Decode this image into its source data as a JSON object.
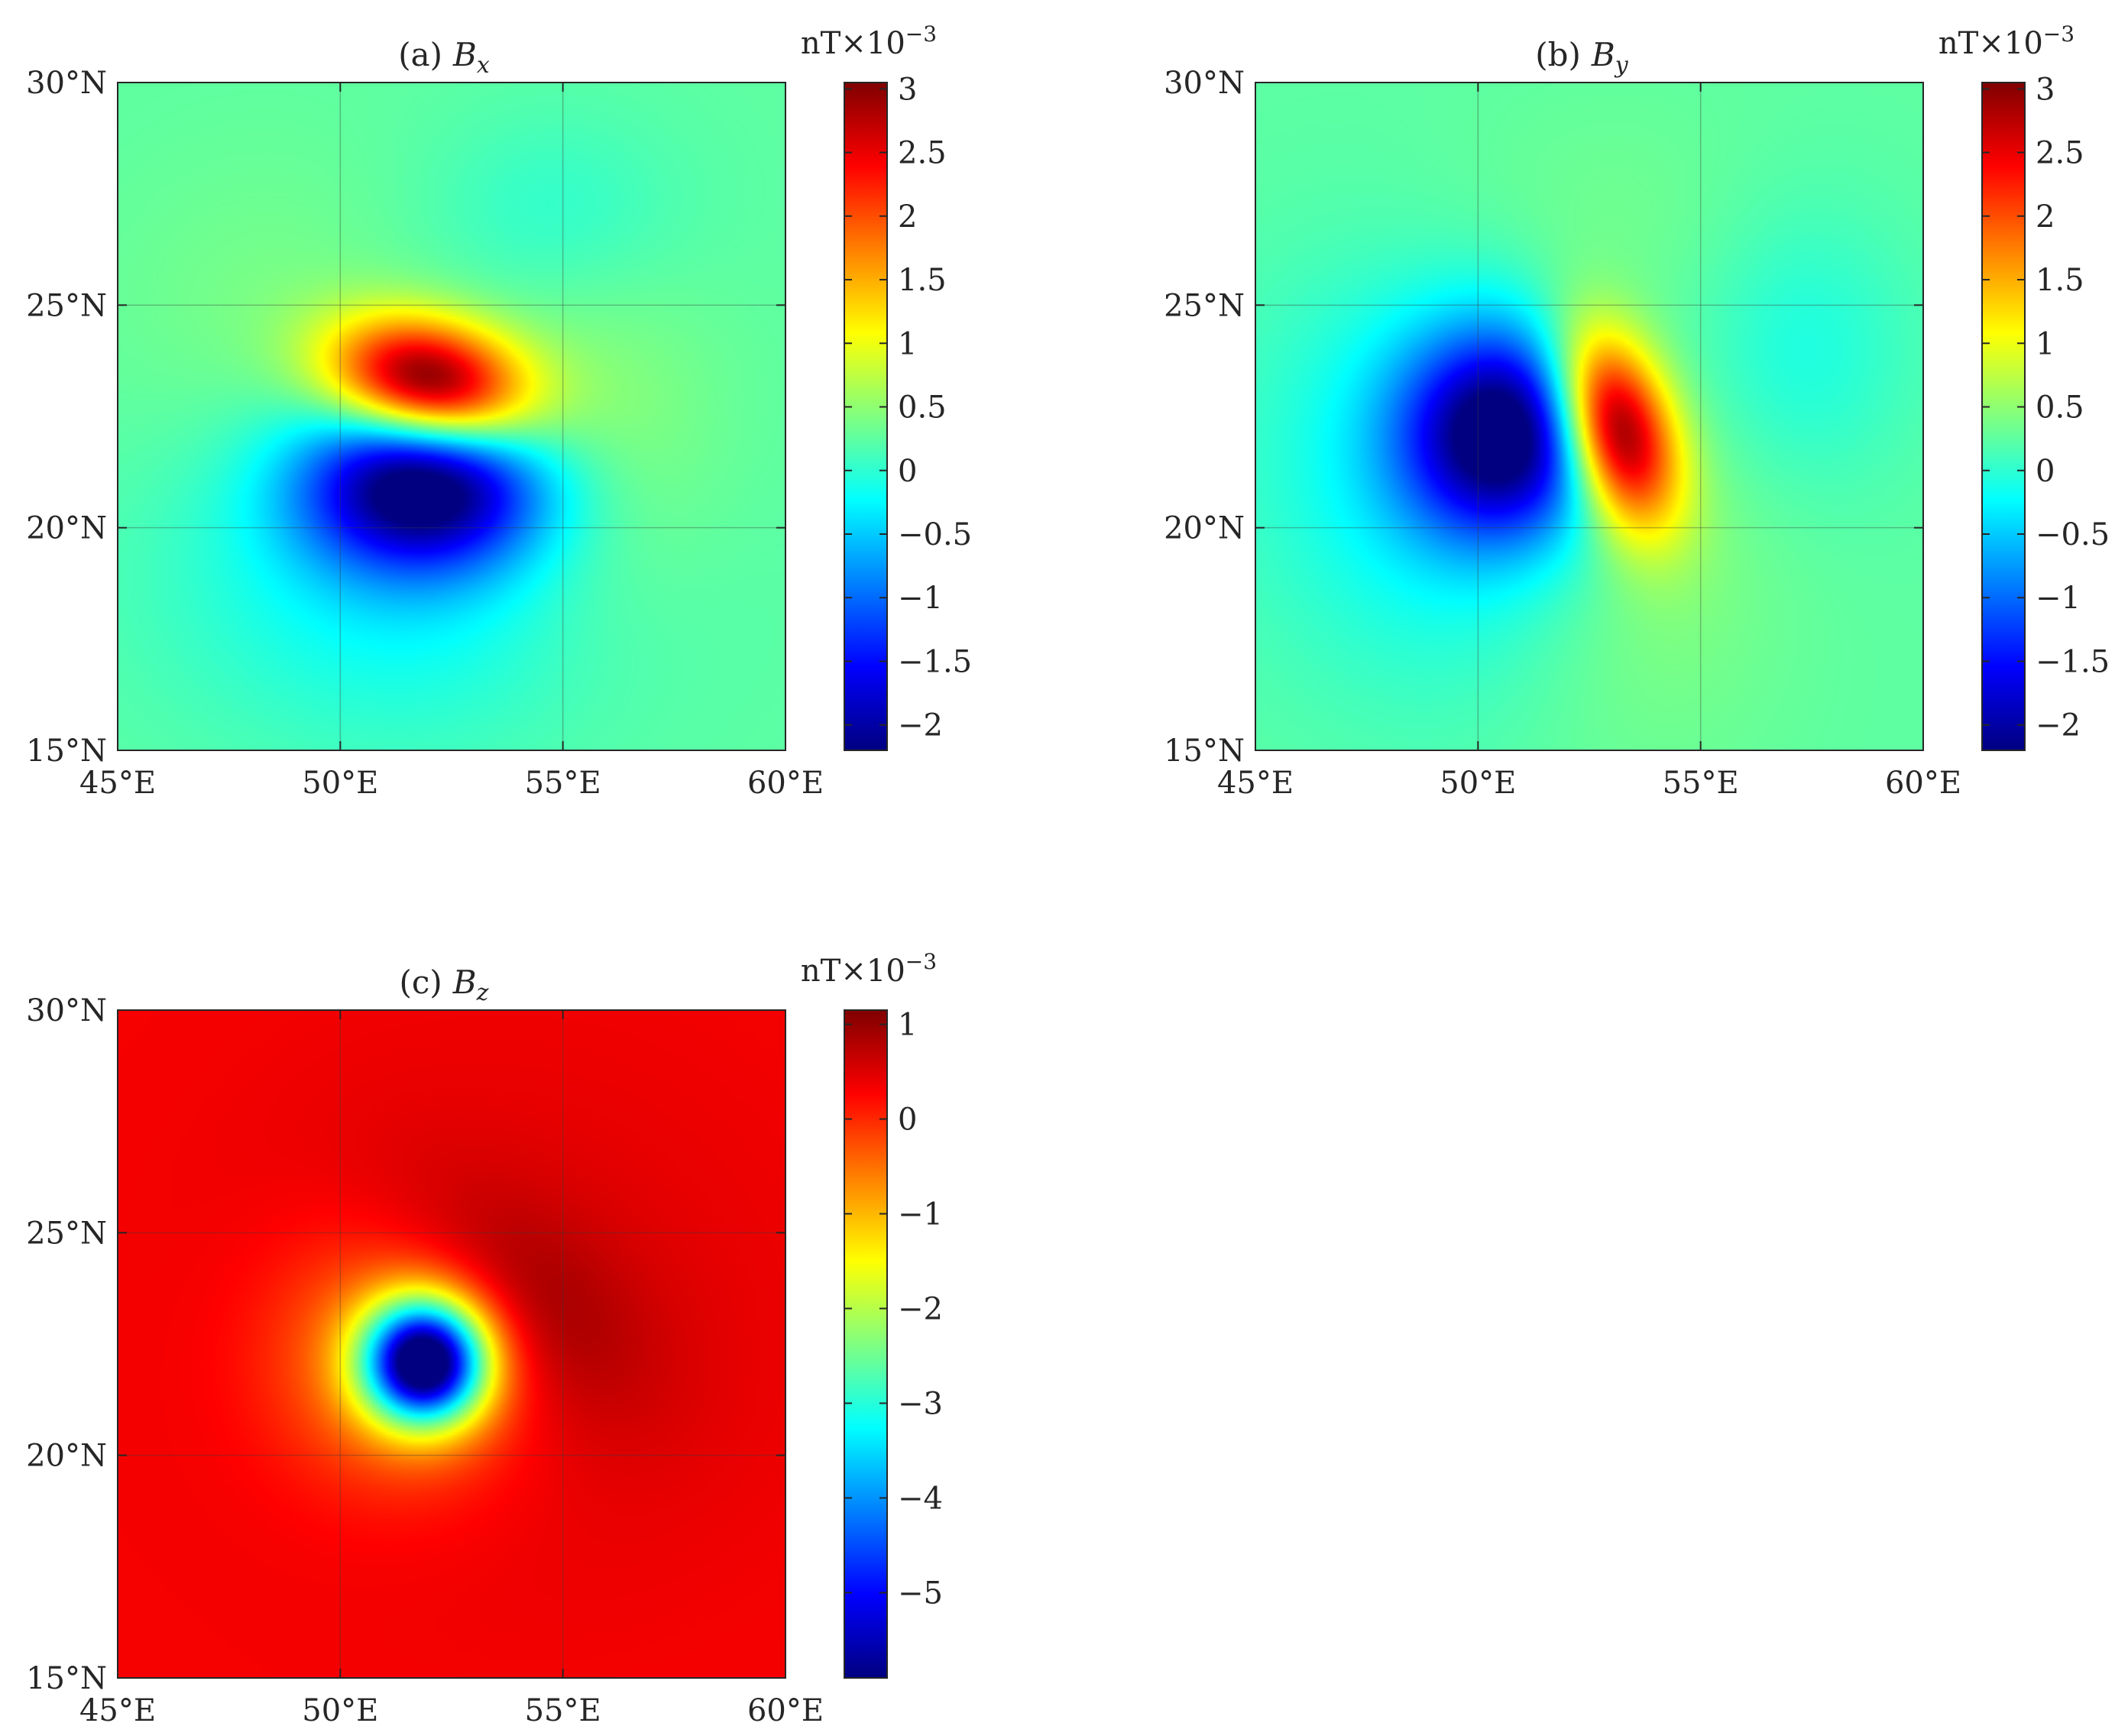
{
  "chart_data": [
    {
      "type": "heatmap",
      "panel_label": "(a)",
      "title_symbol": "B",
      "title_subscript": "x",
      "unit_label": "nT×10",
      "unit_exponent": "−3",
      "x_ticks": [
        "45°E",
        "50°E",
        "55°E",
        "60°E"
      ],
      "x_values": [
        45,
        50,
        55,
        60
      ],
      "y_ticks": [
        "15°N",
        "20°N",
        "25°N",
        "30°N"
      ],
      "y_values": [
        15,
        20,
        25,
        30
      ],
      "xlim": [
        45,
        60
      ],
      "ylim": [
        15,
        30
      ],
      "grid": true,
      "colormap": "jet",
      "clim": [
        -2.2,
        3.05
      ],
      "colorbar_ticks": [
        "−2",
        "−1.5",
        "−1",
        "−0.5",
        "0",
        "0.5",
        "1",
        "1.5",
        "2",
        "2.5",
        "3"
      ],
      "colorbar_values": [
        -2,
        -1.5,
        -1,
        -0.5,
        0,
        0.5,
        1,
        1.5,
        2,
        2.5,
        3
      ],
      "features": [
        {
          "kind": "max",
          "lon": 52.0,
          "lat": 23.2,
          "value": 3.0
        },
        {
          "kind": "min",
          "lon": 51.8,
          "lat": 20.9,
          "value": -2.1
        }
      ]
    },
    {
      "type": "heatmap",
      "panel_label": "(b)",
      "title_symbol": "B",
      "title_subscript": "y",
      "unit_label": "nT×10",
      "unit_exponent": "−3",
      "x_ticks": [
        "45°E",
        "50°E",
        "55°E",
        "60°E"
      ],
      "x_values": [
        45,
        50,
        55,
        60
      ],
      "y_ticks": [
        "15°N",
        "20°N",
        "25°N",
        "30°N"
      ],
      "y_values": [
        15,
        20,
        25,
        30
      ],
      "xlim": [
        45,
        60
      ],
      "ylim": [
        15,
        30
      ],
      "grid": true,
      "colormap": "jet",
      "clim": [
        -2.2,
        3.05
      ],
      "colorbar_ticks": [
        "−2",
        "−1.5",
        "−1",
        "−0.5",
        "0",
        "0.5",
        "1",
        "1.5",
        "2",
        "2.5",
        "3"
      ],
      "colorbar_values": [
        -2,
        -1.5,
        -1,
        -0.5,
        0,
        0.5,
        1,
        1.5,
        2,
        2.5,
        3
      ],
      "features": [
        {
          "kind": "min",
          "lon": 50.6,
          "lat": 22.1,
          "value": -2.1
        },
        {
          "kind": "max",
          "lon": 53.1,
          "lat": 22.2,
          "value": 3.0
        }
      ]
    },
    {
      "type": "heatmap",
      "panel_label": "(c)",
      "title_symbol": "B",
      "title_subscript": "z",
      "unit_label": "nT×10",
      "unit_exponent": "−3",
      "x_ticks": [
        "45°E",
        "50°E",
        "55°E",
        "60°E"
      ],
      "x_values": [
        45,
        50,
        55,
        60
      ],
      "y_ticks": [
        "15°N",
        "20°N",
        "25°N",
        "30°N"
      ],
      "y_values": [
        15,
        20,
        25,
        30
      ],
      "xlim": [
        45,
        60
      ],
      "ylim": [
        15,
        30
      ],
      "grid": true,
      "colormap": "jet",
      "clim": [
        -5.9,
        1.15
      ],
      "colorbar_ticks": [
        "−5",
        "−4",
        "−3",
        "−2",
        "−1",
        "0",
        "1"
      ],
      "colorbar_values": [
        -5,
        -4,
        -3,
        -2,
        -1,
        0,
        1
      ],
      "features": [
        {
          "kind": "min",
          "lon": 51.9,
          "lat": 22.1,
          "value": -5.7
        },
        {
          "kind": "max",
          "lon": 53.8,
          "lat": 23.8,
          "value": 1.0
        }
      ]
    }
  ]
}
